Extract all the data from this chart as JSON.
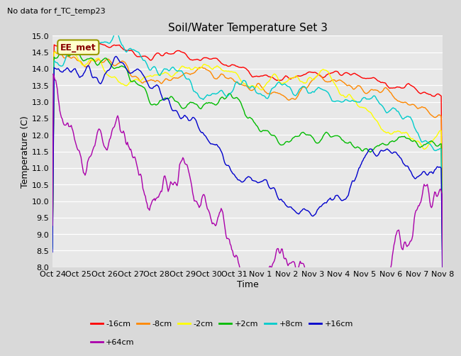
{
  "title": "Soil/Water Temperature Set 3",
  "subtitle": "No data for f_TC_temp23",
  "xlabel": "Time",
  "ylabel": "Temperature (C)",
  "ylim": [
    8.0,
    15.0
  ],
  "yticks": [
    8.0,
    8.5,
    9.0,
    9.5,
    10.0,
    10.5,
    11.0,
    11.5,
    12.0,
    12.5,
    13.0,
    13.5,
    14.0,
    14.5,
    15.0
  ],
  "bg_color": "#d9d9d9",
  "ax_color": "#e8e8e8",
  "series": [
    {
      "label": "-16cm",
      "color": "#ff0000"
    },
    {
      "label": "-8cm",
      "color": "#ff8800"
    },
    {
      "label": "-2cm",
      "color": "#ffff00"
    },
    {
      "label": "+2cm",
      "color": "#00bb00"
    },
    {
      "label": "+8cm",
      "color": "#00cccc"
    },
    {
      "label": "+16cm",
      "color": "#0000cc"
    },
    {
      "label": "+64cm",
      "color": "#aa00aa"
    }
  ],
  "xtick_labels": [
    "Oct 24",
    "Oct 25",
    "Oct 26",
    "Oct 27",
    "Oct 28",
    "Oct 29",
    "Oct 30",
    "Oct 31",
    "Nov 1",
    "Nov 2",
    "Nov 3",
    "Nov 4",
    "Nov 5",
    "Nov 6",
    "Nov 7",
    "Nov 8"
  ],
  "legend_box": {
    "label": "EE_met",
    "facecolor": "#ffffcc",
    "edgecolor": "#999900"
  },
  "n_points": 480
}
